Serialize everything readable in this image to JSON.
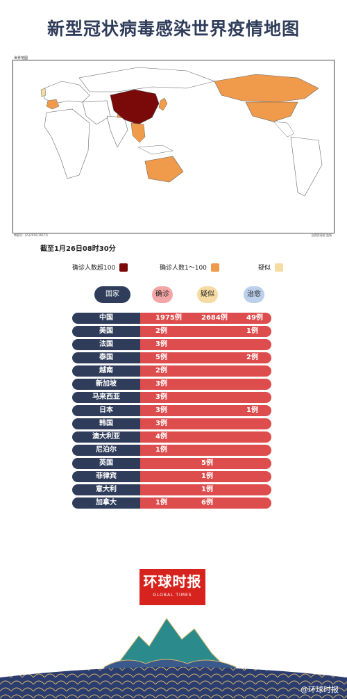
{
  "title": "新型冠状病毒感染世界疫情地图",
  "map": {
    "caption_tl": "世界地图",
    "caption_bl": "审图号：GS(2016)1667号",
    "caption_br": "自然资源部 监制"
  },
  "date_label": "截至1月26日08时30分",
  "legend": [
    {
      "label": "确诊人数超100",
      "color": "#7a0a0a"
    },
    {
      "label": "确诊人数1～100",
      "color": "#f09a4b"
    },
    {
      "label": "疑似",
      "color": "#f6dca3"
    }
  ],
  "table_headers": {
    "country": "国家",
    "confirmed": "确诊",
    "suspected": "疑似",
    "cured": "治愈"
  },
  "colors": {
    "navy": "#2f3d5a",
    "red": "#de4d4d",
    "dark_red": "#7a0a0a",
    "orange": "#f09a4b",
    "beige": "#f6dca3"
  },
  "chart_data": {
    "type": "table",
    "columns": [
      "国家",
      "确诊",
      "疑似",
      "治愈"
    ],
    "rows": [
      {
        "country": "中国",
        "confirmed": "1975例",
        "suspected": "2684例",
        "cured": "49例"
      },
      {
        "country": "美国",
        "confirmed": "2例",
        "suspected": "",
        "cured": "1例"
      },
      {
        "country": "法国",
        "confirmed": "3例",
        "suspected": "",
        "cured": ""
      },
      {
        "country": "泰国",
        "confirmed": "5例",
        "suspected": "",
        "cured": "2例"
      },
      {
        "country": "越南",
        "confirmed": "2例",
        "suspected": "",
        "cured": ""
      },
      {
        "country": "新加坡",
        "confirmed": "3例",
        "suspected": "",
        "cured": ""
      },
      {
        "country": "马来西亚",
        "confirmed": "3例",
        "suspected": "",
        "cured": ""
      },
      {
        "country": "日本",
        "confirmed": "3例",
        "suspected": "",
        "cured": "1例"
      },
      {
        "country": "韩国",
        "confirmed": "3例",
        "suspected": "",
        "cured": ""
      },
      {
        "country": "澳大利亚",
        "confirmed": "4例",
        "suspected": "",
        "cured": ""
      },
      {
        "country": "尼泊尔",
        "confirmed": "1例",
        "suspected": "",
        "cured": ""
      },
      {
        "country": "英国",
        "confirmed": "",
        "suspected": "5例",
        "cured": ""
      },
      {
        "country": "菲律宾",
        "confirmed": "",
        "suspected": "1例",
        "cured": ""
      },
      {
        "country": "意大利",
        "confirmed": "",
        "suspected": "1例",
        "cured": ""
      },
      {
        "country": "加拿大",
        "confirmed": "1例",
        "suspected": "6例",
        "cured": ""
      }
    ]
  },
  "logo": {
    "cn": "环球时报",
    "en": "GLOBAL TIMES"
  },
  "watermark": "@环球时报"
}
